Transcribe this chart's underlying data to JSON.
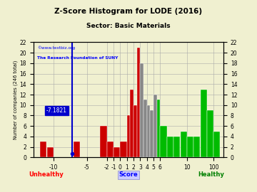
{
  "title": "Z-Score Histogram for LODE (2016)",
  "subtitle": "Sector: Basic Materials",
  "xlabel_left": "Unhealthy",
  "xlabel_center": "Score",
  "xlabel_right": "Healthy",
  "ylabel": "Number of companies (246 total)",
  "watermark1": "©www.textbiz.org",
  "watermark2": "The Research Foundation of SUNY",
  "annotation": "-7.1821",
  "background_color": "#f0f0d0",
  "grid_color": "#aaaaaa",
  "vline_x": -7.1821,
  "vline_color": "#0000cc",
  "bar_data": [
    [
      -12,
      -11,
      3,
      "#cc0000"
    ],
    [
      -11,
      -10,
      2,
      "#cc0000"
    ],
    [
      -7,
      -6,
      3,
      "#cc0000"
    ],
    [
      -3,
      -2,
      6,
      "#cc0000"
    ],
    [
      -2,
      -1,
      3,
      "#cc0000"
    ],
    [
      -1,
      0,
      2,
      "#cc0000"
    ],
    [
      0,
      1,
      3,
      "#cc0000"
    ],
    [
      1,
      1.5,
      8,
      "#cc0000"
    ],
    [
      1.5,
      2,
      13,
      "#cc0000"
    ],
    [
      2,
      2.5,
      10,
      "#cc0000"
    ],
    [
      2.5,
      3,
      21,
      "#cc0000"
    ],
    [
      3,
      3.5,
      18,
      "#888888"
    ],
    [
      3.5,
      4,
      11,
      "#888888"
    ],
    [
      4,
      4.5,
      10,
      "#888888"
    ],
    [
      4.5,
      5,
      9,
      "#888888"
    ],
    [
      5,
      5.5,
      12,
      "#888888"
    ],
    [
      5.5,
      6,
      11,
      "#00bb00"
    ],
    [
      6,
      7,
      6,
      "#00bb00"
    ],
    [
      7,
      8,
      4,
      "#00bb00"
    ],
    [
      8,
      9,
      4,
      "#00bb00"
    ],
    [
      9,
      10,
      5,
      "#00bb00"
    ],
    [
      10,
      11,
      4,
      "#00bb00"
    ],
    [
      11,
      12,
      4,
      "#00bb00"
    ],
    [
      12,
      13,
      13,
      "#00bb00"
    ],
    [
      13,
      14,
      9,
      "#00bb00"
    ],
    [
      14,
      15,
      5,
      "#00bb00"
    ]
  ],
  "xtick_positions": [
    -10,
    -5,
    -2,
    -1,
    0,
    1,
    2,
    3,
    4,
    5,
    6,
    10,
    14
  ],
  "xtick_labels": [
    "-10",
    "-5",
    "-2",
    "-1",
    "0",
    "1",
    "2",
    "3",
    "4",
    "5",
    "6",
    "10",
    "100"
  ],
  "yticks": [
    0,
    2,
    4,
    6,
    8,
    10,
    12,
    14,
    16,
    18,
    20,
    22
  ],
  "xlim": [
    -13,
    15.5
  ],
  "ylim": [
    0,
    22
  ]
}
